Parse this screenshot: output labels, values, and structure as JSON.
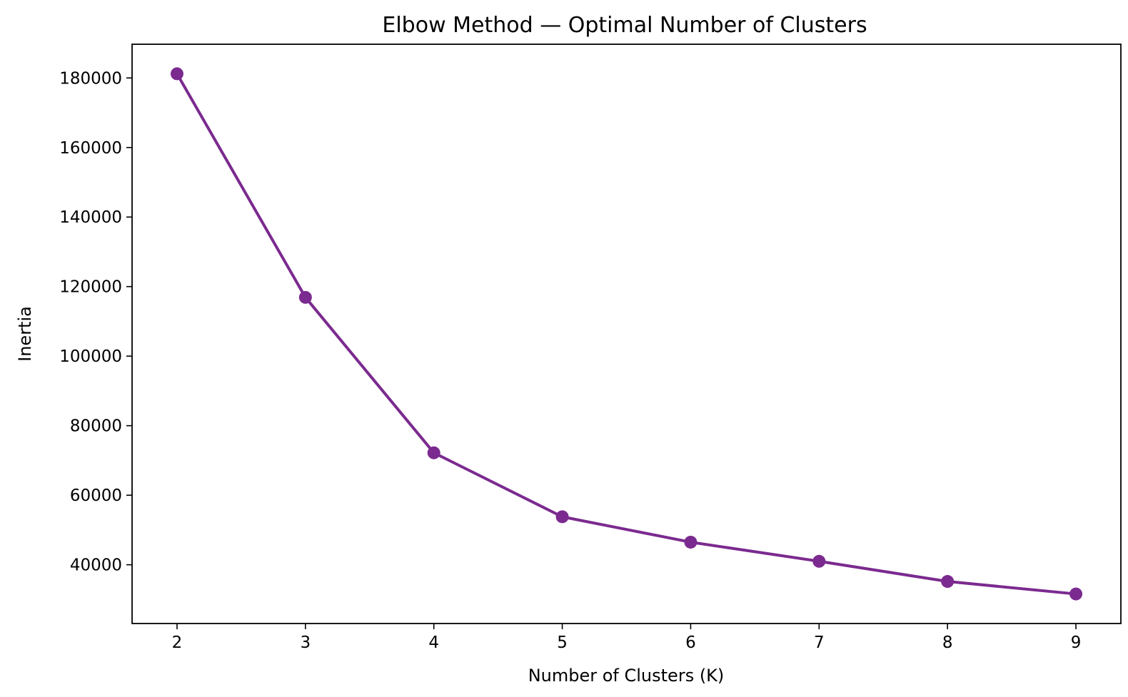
{
  "chart_data": {
    "type": "line",
    "title": "Elbow Method — Optimal Number of Clusters",
    "xlabel": "Number of Clusters (K)",
    "ylabel": "Inertia",
    "x": [
      2,
      3,
      4,
      5,
      6,
      7,
      8,
      9
    ],
    "series": [
      {
        "values": [
          181200,
          116900,
          72200,
          53800,
          46500,
          41000,
          35200,
          31600
        ],
        "color": "#7b2a8f",
        "marker": "circle"
      }
    ],
    "xticks": [
      2,
      3,
      4,
      5,
      6,
      7,
      8,
      9
    ],
    "yticks": [
      40000,
      60000,
      80000,
      100000,
      120000,
      140000,
      160000,
      180000
    ],
    "xlim": [
      1.65,
      9.35
    ],
    "ylim": [
      23100,
      189700
    ],
    "grid": false,
    "legend": "none"
  }
}
